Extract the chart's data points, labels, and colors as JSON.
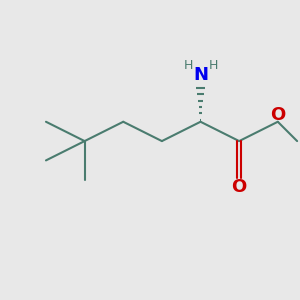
{
  "bg_color": "#e8e8e8",
  "bond_color": "#4a7c6f",
  "N_color": "#0000ee",
  "O_color": "#cc0000",
  "H_color": "#4a7c6f",
  "bond_lw": 1.5,
  "figsize": [
    3.0,
    3.0
  ],
  "dpi": 100,
  "xlim": [
    0,
    10
  ],
  "ylim": [
    0,
    10
  ],
  "nh2_label": "NH",
  "nh2_sub": "2",
  "o_ester": "O",
  "o_carbonyl": "O",
  "methyl_label": ""
}
